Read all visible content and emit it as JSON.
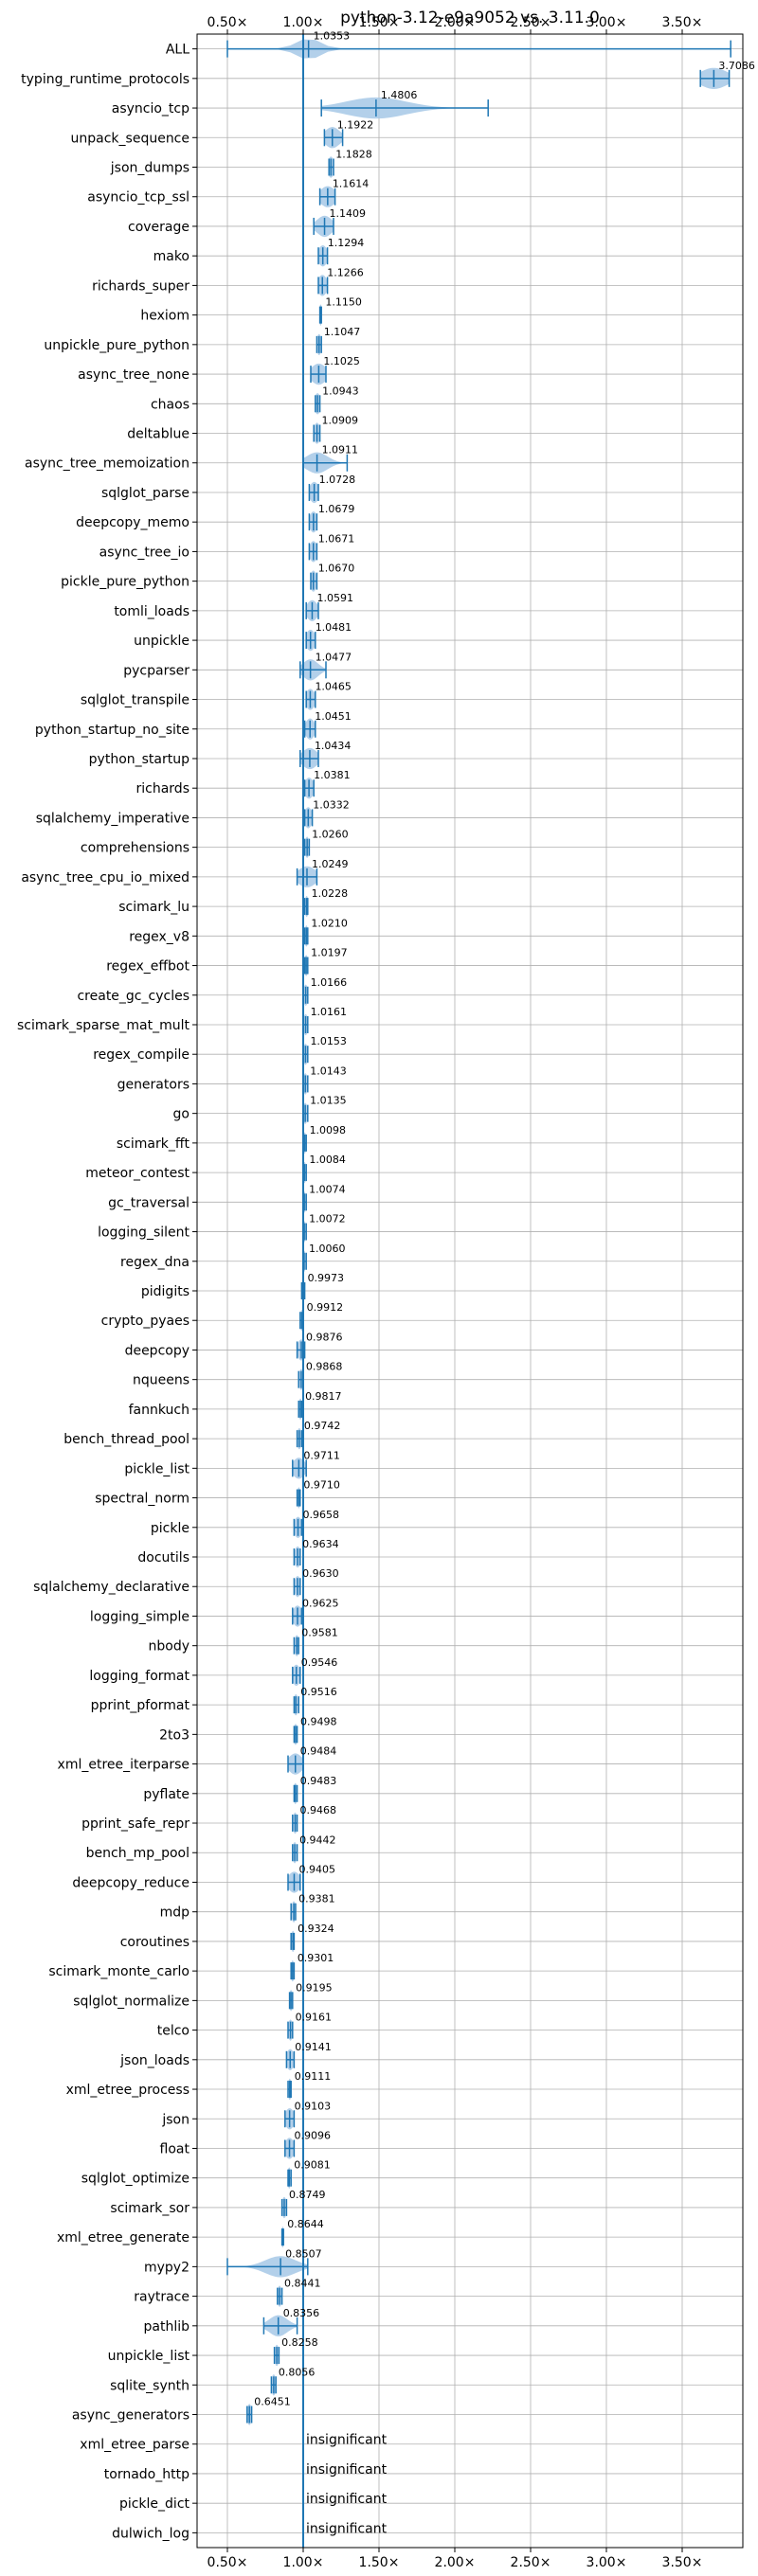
{
  "chart_data": {
    "type": "violin",
    "title": "python-3.12-e9a9052 vs. 3.11.0",
    "xlim": [
      0.3,
      3.9
    ],
    "xticks": [
      0.5,
      1.0,
      1.5,
      2.0,
      2.5,
      3.0,
      3.5
    ],
    "xtick_labels": [
      "0.50×",
      "1.00×",
      "1.50×",
      "2.00×",
      "2.50×",
      "3.00×",
      "3.50×"
    ],
    "reference_line": 1.0,
    "grid": true,
    "colors": {
      "series": "#1f77b4",
      "violin_fill": "#a6c8e6",
      "grid": "#b0b0b0"
    },
    "benchmarks": [
      {
        "name": "ALL",
        "value": 1.0353,
        "label": "1.0353",
        "min": 0.5,
        "max": 3.82,
        "spread": 0.08
      },
      {
        "name": "typing_runtime_protocols",
        "value": 3.7086,
        "label": "3.7086",
        "min": 3.62,
        "max": 3.81,
        "spread": 0.09
      },
      {
        "name": "asyncio_tcp",
        "value": 1.4806,
        "label": "1.4806",
        "min": 1.12,
        "max": 2.22,
        "spread": 0.2
      },
      {
        "name": "unpack_sequence",
        "value": 1.1922,
        "label": "1.1922",
        "min": 1.14,
        "max": 1.26,
        "spread": 0.05
      },
      {
        "name": "json_dumps",
        "value": 1.1828,
        "label": "1.1828",
        "min": 1.17,
        "max": 1.2,
        "spread": 0.02
      },
      {
        "name": "asyncio_tcp_ssl",
        "value": 1.1614,
        "label": "1.1614",
        "min": 1.11,
        "max": 1.21,
        "spread": 0.05
      },
      {
        "name": "coverage",
        "value": 1.1409,
        "label": "1.1409",
        "min": 1.07,
        "max": 1.2,
        "spread": 0.05
      },
      {
        "name": "mako",
        "value": 1.1294,
        "label": "1.1294",
        "min": 1.1,
        "max": 1.16,
        "spread": 0.03
      },
      {
        "name": "richards_super",
        "value": 1.1266,
        "label": "1.1266",
        "min": 1.1,
        "max": 1.16,
        "spread": 0.03
      },
      {
        "name": "hexiom",
        "value": 1.115,
        "label": "1.1150",
        "min": 1.11,
        "max": 1.12,
        "spread": 0.01
      },
      {
        "name": "unpickle_pure_python",
        "value": 1.1047,
        "label": "1.1047",
        "min": 1.09,
        "max": 1.12,
        "spread": 0.015
      },
      {
        "name": "async_tree_none",
        "value": 1.1025,
        "label": "1.1025",
        "min": 1.05,
        "max": 1.15,
        "spread": 0.05
      },
      {
        "name": "chaos",
        "value": 1.0943,
        "label": "1.0943",
        "min": 1.08,
        "max": 1.11,
        "spread": 0.02
      },
      {
        "name": "deltablue",
        "value": 1.0909,
        "label": "1.0909",
        "min": 1.07,
        "max": 1.11,
        "spread": 0.02
      },
      {
        "name": "async_tree_memoization",
        "value": 1.0911,
        "label": "1.0911",
        "min": 1.0,
        "max": 1.29,
        "spread": 0.07
      },
      {
        "name": "sqlglot_parse",
        "value": 1.0728,
        "label": "1.0728",
        "min": 1.04,
        "max": 1.1,
        "spread": 0.03
      },
      {
        "name": "deepcopy_memo",
        "value": 1.0679,
        "label": "1.0679",
        "min": 1.04,
        "max": 1.09,
        "spread": 0.025
      },
      {
        "name": "async_tree_io",
        "value": 1.0671,
        "label": "1.0671",
        "min": 1.04,
        "max": 1.09,
        "spread": 0.025
      },
      {
        "name": "pickle_pure_python",
        "value": 1.067,
        "label": "1.0670",
        "min": 1.05,
        "max": 1.09,
        "spread": 0.02
      },
      {
        "name": "tomli_loads",
        "value": 1.0591,
        "label": "1.0591",
        "min": 1.02,
        "max": 1.1,
        "spread": 0.035
      },
      {
        "name": "unpickle",
        "value": 1.0481,
        "label": "1.0481",
        "min": 1.02,
        "max": 1.08,
        "spread": 0.03
      },
      {
        "name": "pycparser",
        "value": 1.0477,
        "label": "1.0477",
        "min": 0.98,
        "max": 1.15,
        "spread": 0.05
      },
      {
        "name": "sqlglot_transpile",
        "value": 1.0465,
        "label": "1.0465",
        "min": 1.02,
        "max": 1.08,
        "spread": 0.03
      },
      {
        "name": "python_startup_no_site",
        "value": 1.0451,
        "label": "1.0451",
        "min": 1.01,
        "max": 1.08,
        "spread": 0.03
      },
      {
        "name": "python_startup",
        "value": 1.0434,
        "label": "1.0434",
        "min": 0.98,
        "max": 1.1,
        "spread": 0.05
      },
      {
        "name": "richards",
        "value": 1.0381,
        "label": "1.0381",
        "min": 1.01,
        "max": 1.07,
        "spread": 0.03
      },
      {
        "name": "sqlalchemy_imperative",
        "value": 1.0332,
        "label": "1.0332",
        "min": 1.01,
        "max": 1.06,
        "spread": 0.025
      },
      {
        "name": "comprehensions",
        "value": 1.026,
        "label": "1.0260",
        "min": 1.01,
        "max": 1.04,
        "spread": 0.015
      },
      {
        "name": "async_tree_cpu_io_mixed",
        "value": 1.0249,
        "label": "1.0249",
        "min": 0.96,
        "max": 1.09,
        "spread": 0.06
      },
      {
        "name": "scimark_lu",
        "value": 1.0228,
        "label": "1.0228",
        "min": 1.01,
        "max": 1.03,
        "spread": 0.012
      },
      {
        "name": "regex_v8",
        "value": 1.021,
        "label": "1.0210",
        "min": 1.01,
        "max": 1.03,
        "spread": 0.012
      },
      {
        "name": "regex_effbot",
        "value": 1.0197,
        "label": "1.0197",
        "min": 1.01,
        "max": 1.03,
        "spread": 0.012
      },
      {
        "name": "create_gc_cycles",
        "value": 1.0166,
        "label": "1.0166",
        "min": 1.0,
        "max": 1.03,
        "spread": 0.015
      },
      {
        "name": "scimark_sparse_mat_mult",
        "value": 1.0161,
        "label": "1.0161",
        "min": 1.0,
        "max": 1.03,
        "spread": 0.015
      },
      {
        "name": "regex_compile",
        "value": 1.0153,
        "label": "1.0153",
        "min": 1.0,
        "max": 1.03,
        "spread": 0.015
      },
      {
        "name": "generators",
        "value": 1.0143,
        "label": "1.0143",
        "min": 1.0,
        "max": 1.03,
        "spread": 0.015
      },
      {
        "name": "go",
        "value": 1.0135,
        "label": "1.0135",
        "min": 1.0,
        "max": 1.03,
        "spread": 0.015
      },
      {
        "name": "scimark_fft",
        "value": 1.0098,
        "label": "1.0098",
        "min": 1.0,
        "max": 1.02,
        "spread": 0.012
      },
      {
        "name": "meteor_contest",
        "value": 1.0084,
        "label": "1.0084",
        "min": 1.0,
        "max": 1.02,
        "spread": 0.012
      },
      {
        "name": "gc_traversal",
        "value": 1.0074,
        "label": "1.0074",
        "min": 1.0,
        "max": 1.02,
        "spread": 0.012
      },
      {
        "name": "logging_silent",
        "value": 1.0072,
        "label": "1.0072",
        "min": 1.0,
        "max": 1.02,
        "spread": 0.012
      },
      {
        "name": "regex_dna",
        "value": 1.006,
        "label": "1.0060",
        "min": 1.0,
        "max": 1.02,
        "spread": 0.012
      },
      {
        "name": "pidigits",
        "value": 0.9973,
        "label": "0.9973",
        "min": 0.99,
        "max": 1.01,
        "spread": 0.01
      },
      {
        "name": "crypto_pyaes",
        "value": 0.9912,
        "label": "0.9912",
        "min": 0.98,
        "max": 1.0,
        "spread": 0.012
      },
      {
        "name": "deepcopy",
        "value": 0.9876,
        "label": "0.9876",
        "min": 0.96,
        "max": 1.01,
        "spread": 0.025
      },
      {
        "name": "nqueens",
        "value": 0.9868,
        "label": "0.9868",
        "min": 0.97,
        "max": 1.0,
        "spread": 0.015
      },
      {
        "name": "fannkuch",
        "value": 0.9817,
        "label": "0.9817",
        "min": 0.97,
        "max": 0.99,
        "spread": 0.012
      },
      {
        "name": "bench_thread_pool",
        "value": 0.9742,
        "label": "0.9742",
        "min": 0.96,
        "max": 0.99,
        "spread": 0.015
      },
      {
        "name": "pickle_list",
        "value": 0.9711,
        "label": "0.9711",
        "min": 0.93,
        "max": 1.02,
        "spread": 0.04
      },
      {
        "name": "spectral_norm",
        "value": 0.971,
        "label": "0.9710",
        "min": 0.96,
        "max": 0.98,
        "spread": 0.01
      },
      {
        "name": "pickle",
        "value": 0.9658,
        "label": "0.9658",
        "min": 0.94,
        "max": 0.99,
        "spread": 0.025
      },
      {
        "name": "docutils",
        "value": 0.9634,
        "label": "0.9634",
        "min": 0.94,
        "max": 0.98,
        "spread": 0.02
      },
      {
        "name": "sqlalchemy_declarative",
        "value": 0.963,
        "label": "0.9630",
        "min": 0.94,
        "max": 0.98,
        "spread": 0.02
      },
      {
        "name": "logging_simple",
        "value": 0.9625,
        "label": "0.9625",
        "min": 0.93,
        "max": 0.99,
        "spread": 0.03
      },
      {
        "name": "nbody",
        "value": 0.9581,
        "label": "0.9581",
        "min": 0.94,
        "max": 0.97,
        "spread": 0.015
      },
      {
        "name": "logging_format",
        "value": 0.9546,
        "label": "0.9546",
        "min": 0.93,
        "max": 0.98,
        "spread": 0.025
      },
      {
        "name": "pprint_pformat",
        "value": 0.9516,
        "label": "0.9516",
        "min": 0.94,
        "max": 0.97,
        "spread": 0.015
      },
      {
        "name": "2to3",
        "value": 0.9498,
        "label": "0.9498",
        "min": 0.94,
        "max": 0.96,
        "spread": 0.012
      },
      {
        "name": "xml_etree_iterparse",
        "value": 0.9484,
        "label": "0.9484",
        "min": 0.9,
        "max": 1.0,
        "spread": 0.045
      },
      {
        "name": "pyflate",
        "value": 0.9483,
        "label": "0.9483",
        "min": 0.94,
        "max": 0.96,
        "spread": 0.012
      },
      {
        "name": "pprint_safe_repr",
        "value": 0.9468,
        "label": "0.9468",
        "min": 0.93,
        "max": 0.96,
        "spread": 0.015
      },
      {
        "name": "bench_mp_pool",
        "value": 0.9442,
        "label": "0.9442",
        "min": 0.93,
        "max": 0.96,
        "spread": 0.015
      },
      {
        "name": "deepcopy_reduce",
        "value": 0.9405,
        "label": "0.9405",
        "min": 0.9,
        "max": 0.98,
        "spread": 0.04
      },
      {
        "name": "mdp",
        "value": 0.9381,
        "label": "0.9381",
        "min": 0.92,
        "max": 0.95,
        "spread": 0.015
      },
      {
        "name": "coroutines",
        "value": 0.9324,
        "label": "0.9324",
        "min": 0.92,
        "max": 0.94,
        "spread": 0.012
      },
      {
        "name": "scimark_monte_carlo",
        "value": 0.9301,
        "label": "0.9301",
        "min": 0.92,
        "max": 0.94,
        "spread": 0.012
      },
      {
        "name": "sqlglot_normalize",
        "value": 0.9195,
        "label": "0.9195",
        "min": 0.91,
        "max": 0.93,
        "spread": 0.012
      },
      {
        "name": "telco",
        "value": 0.9161,
        "label": "0.9161",
        "min": 0.9,
        "max": 0.93,
        "spread": 0.015
      },
      {
        "name": "json_loads",
        "value": 0.9141,
        "label": "0.9141",
        "min": 0.89,
        "max": 0.94,
        "spread": 0.025
      },
      {
        "name": "xml_etree_process",
        "value": 0.9111,
        "label": "0.9111",
        "min": 0.9,
        "max": 0.92,
        "spread": 0.012
      },
      {
        "name": "json",
        "value": 0.9103,
        "label": "0.9103",
        "min": 0.88,
        "max": 0.94,
        "spread": 0.03
      },
      {
        "name": "float",
        "value": 0.9096,
        "label": "0.9096",
        "min": 0.88,
        "max": 0.94,
        "spread": 0.03
      },
      {
        "name": "sqlglot_optimize",
        "value": 0.9081,
        "label": "0.9081",
        "min": 0.9,
        "max": 0.92,
        "spread": 0.012
      },
      {
        "name": "scimark_sor",
        "value": 0.8749,
        "label": "0.8749",
        "min": 0.86,
        "max": 0.89,
        "spread": 0.015
      },
      {
        "name": "xml_etree_generate",
        "value": 0.8644,
        "label": "0.8644",
        "min": 0.86,
        "max": 0.87,
        "spread": 0.008
      },
      {
        "name": "mypy2",
        "value": 0.8507,
        "label": "0.8507",
        "min": 0.5,
        "max": 1.03,
        "spread": 0.1
      },
      {
        "name": "raytrace",
        "value": 0.8441,
        "label": "0.8441",
        "min": 0.83,
        "max": 0.86,
        "spread": 0.015
      },
      {
        "name": "pathlib",
        "value": 0.8356,
        "label": "0.8356",
        "min": 0.74,
        "max": 0.96,
        "spread": 0.06
      },
      {
        "name": "unpickle_list",
        "value": 0.8258,
        "label": "0.8258",
        "min": 0.81,
        "max": 0.84,
        "spread": 0.015
      },
      {
        "name": "sqlite_synth",
        "value": 0.8056,
        "label": "0.8056",
        "min": 0.79,
        "max": 0.82,
        "spread": 0.015
      },
      {
        "name": "async_generators",
        "value": 0.6451,
        "label": "0.6451",
        "min": 0.63,
        "max": 0.66,
        "spread": 0.015
      },
      {
        "name": "xml_etree_parse",
        "insignificant": true,
        "label": "insignificant"
      },
      {
        "name": "tornado_http",
        "insignificant": true,
        "label": "insignificant"
      },
      {
        "name": "pickle_dict",
        "insignificant": true,
        "label": "insignificant"
      },
      {
        "name": "dulwich_log",
        "insignificant": true,
        "label": "insignificant"
      }
    ]
  }
}
